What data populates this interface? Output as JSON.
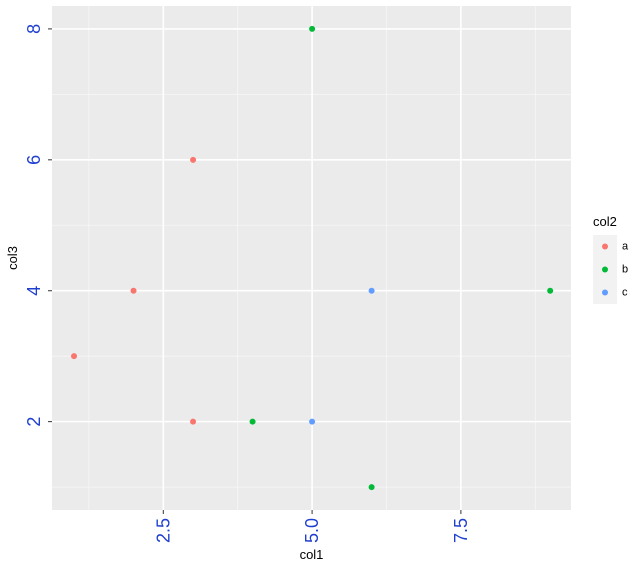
{
  "chart_data": {
    "type": "scatter",
    "xlabel": "col1",
    "ylabel": "col3",
    "xlim": [
      0.63,
      9.35
    ],
    "ylim": [
      0.65,
      8.35
    ],
    "x_ticks": [
      2.5,
      5.0,
      7.5
    ],
    "x_tick_labels": [
      "2.5",
      "5.0",
      "7.5"
    ],
    "y_ticks": [
      2,
      4,
      6,
      8
    ],
    "y_tick_labels": [
      "2",
      "4",
      "6",
      "8"
    ],
    "grid": true,
    "legend": {
      "title": "col2",
      "position": "right",
      "entries": [
        {
          "label": "a",
          "color": "#F8766D"
        },
        {
          "label": "b",
          "color": "#00BA38"
        },
        {
          "label": "c",
          "color": "#619CFF"
        }
      ]
    },
    "series": [
      {
        "name": "a",
        "color": "#F8766D",
        "points": [
          [
            1,
            3
          ],
          [
            2,
            4
          ],
          [
            3,
            6
          ],
          [
            3,
            2
          ]
        ]
      },
      {
        "name": "b",
        "color": "#00BA38",
        "points": [
          [
            4,
            2
          ],
          [
            5,
            8
          ],
          [
            6,
            1
          ],
          [
            9,
            4
          ]
        ]
      },
      {
        "name": "c",
        "color": "#619CFF",
        "points": [
          [
            5,
            2
          ],
          [
            6,
            4
          ]
        ]
      }
    ]
  }
}
